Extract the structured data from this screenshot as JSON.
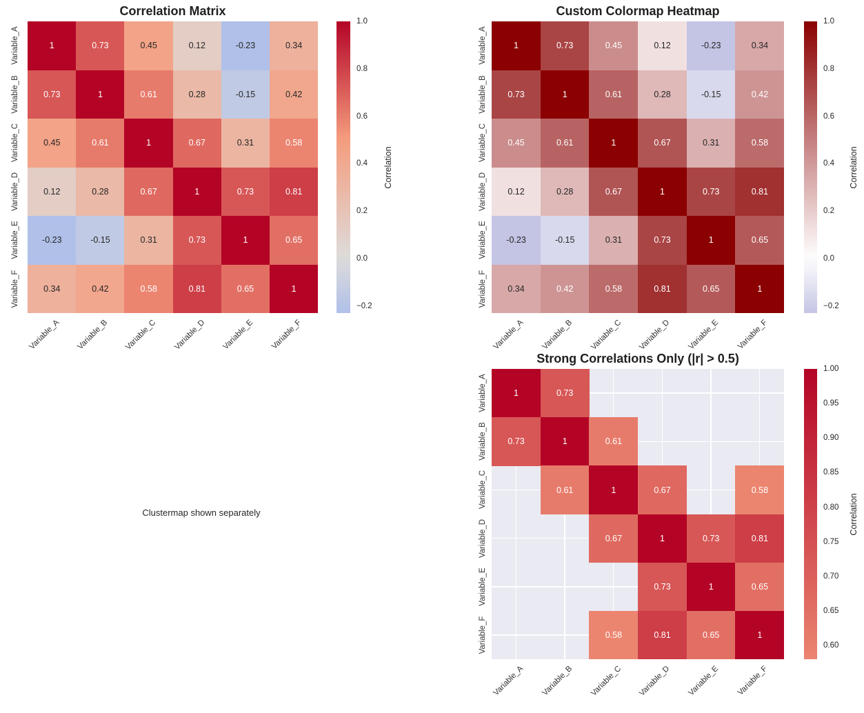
{
  "figure": {
    "background": "#ffffff"
  },
  "variables": [
    "Variable_A",
    "Variable_B",
    "Variable_C",
    "Variable_D",
    "Variable_E",
    "Variable_F"
  ],
  "colormaps": {
    "coolwarm": {
      "positions": [
        0,
        0.25,
        0.5,
        0.75,
        1
      ],
      "colors": [
        "#3b4cc0",
        "#7c9ff9",
        "#dddcdb",
        "#f59d7e",
        "#b40426"
      ]
    },
    "custom": {
      "positions": [
        0,
        0.5,
        1
      ],
      "colors": [
        "#00008b",
        "#ffffff",
        "#8b0000"
      ]
    }
  },
  "colors": {
    "masked_background": "#eaeaf2",
    "grid_line": "#ffffff",
    "annotation_dark": "#262626",
    "annotation_light": "#ffffff",
    "tick_text": "#333333",
    "title_text": "#1f1f1f"
  },
  "chart_data": [
    {
      "type": "heatmap",
      "title": "Correlation Matrix",
      "x_categories": [
        "Variable_A",
        "Variable_B",
        "Variable_C",
        "Variable_D",
        "Variable_E",
        "Variable_F"
      ],
      "y_categories": [
        "Variable_A",
        "Variable_B",
        "Variable_C",
        "Variable_D",
        "Variable_E",
        "Variable_F"
      ],
      "matrix": [
        [
          1,
          0.73,
          0.45,
          0.12,
          -0.23,
          0.34
        ],
        [
          0.73,
          1,
          0.61,
          0.28,
          -0.15,
          0.42
        ],
        [
          0.45,
          0.61,
          1,
          0.67,
          0.31,
          0.58
        ],
        [
          0.12,
          0.28,
          0.67,
          1,
          0.73,
          0.81
        ],
        [
          -0.23,
          -0.15,
          0.31,
          0.73,
          1,
          0.65
        ],
        [
          0.34,
          0.42,
          0.58,
          0.81,
          0.65,
          1
        ]
      ],
      "colormap": "coolwarm",
      "value_norm": {
        "vmin": -1,
        "vmax": 1
      },
      "colorbar": {
        "label": "Correlation",
        "vmin": -0.23,
        "vmax": 1.0,
        "ticks": [
          {
            "v": 1.0,
            "label": "1.0"
          },
          {
            "v": 0.8,
            "label": "0.8"
          },
          {
            "v": 0.6,
            "label": "0.6"
          },
          {
            "v": 0.4,
            "label": "0.4"
          },
          {
            "v": 0.2,
            "label": "0.2"
          },
          {
            "v": 0.0,
            "label": "0.0"
          },
          {
            "v": -0.2,
            "label": "−0.2"
          }
        ]
      }
    },
    {
      "type": "heatmap",
      "title": "Custom Colormap Heatmap",
      "x_categories": [
        "Variable_A",
        "Variable_B",
        "Variable_C",
        "Variable_D",
        "Variable_E",
        "Variable_F"
      ],
      "y_categories": [
        "Variable_A",
        "Variable_B",
        "Variable_C",
        "Variable_D",
        "Variable_E",
        "Variable_F"
      ],
      "matrix": [
        [
          1,
          0.73,
          0.45,
          0.12,
          -0.23,
          0.34
        ],
        [
          0.73,
          1,
          0.61,
          0.28,
          -0.15,
          0.42
        ],
        [
          0.45,
          0.61,
          1,
          0.67,
          0.31,
          0.58
        ],
        [
          0.12,
          0.28,
          0.67,
          1,
          0.73,
          0.81
        ],
        [
          -0.23,
          -0.15,
          0.31,
          0.73,
          1,
          0.65
        ],
        [
          0.34,
          0.42,
          0.58,
          0.81,
          0.65,
          1
        ]
      ],
      "colormap": "custom",
      "value_norm": {
        "vmin": -1,
        "vmax": 1
      },
      "colorbar": {
        "label": "Correlation",
        "vmin": -0.23,
        "vmax": 1.0,
        "ticks": [
          {
            "v": 1.0,
            "label": "1.0"
          },
          {
            "v": 0.8,
            "label": "0.8"
          },
          {
            "v": 0.6,
            "label": "0.6"
          },
          {
            "v": 0.4,
            "label": "0.4"
          },
          {
            "v": 0.2,
            "label": "0.2"
          },
          {
            "v": 0.0,
            "label": "0.0"
          },
          {
            "v": -0.2,
            "label": "−0.2"
          }
        ]
      }
    },
    {
      "type": "heatmap",
      "title": "Strong Correlations Only (|r| > 0.5)",
      "mask_threshold": 0.5,
      "x_categories": [
        "Variable_A",
        "Variable_B",
        "Variable_C",
        "Variable_D",
        "Variable_E",
        "Variable_F"
      ],
      "y_categories": [
        "Variable_A",
        "Variable_B",
        "Variable_C",
        "Variable_D",
        "Variable_E",
        "Variable_F"
      ],
      "matrix": [
        [
          1,
          0.73,
          null,
          null,
          null,
          null
        ],
        [
          0.73,
          1,
          0.61,
          null,
          null,
          null
        ],
        [
          null,
          0.61,
          1,
          0.67,
          null,
          0.58
        ],
        [
          null,
          null,
          0.67,
          1,
          0.73,
          0.81
        ],
        [
          null,
          null,
          null,
          0.73,
          1,
          0.65
        ],
        [
          null,
          null,
          0.58,
          0.81,
          0.65,
          1
        ]
      ],
      "colormap": "coolwarm",
      "value_norm": {
        "vmin": -1,
        "vmax": 1
      },
      "colorbar": {
        "label": "Correlation",
        "vmin": 0.58,
        "vmax": 1.0,
        "ticks": [
          {
            "v": 1.0,
            "label": "1.00"
          },
          {
            "v": 0.95,
            "label": "0.95"
          },
          {
            "v": 0.9,
            "label": "0.90"
          },
          {
            "v": 0.85,
            "label": "0.85"
          },
          {
            "v": 0.8,
            "label": "0.80"
          },
          {
            "v": 0.75,
            "label": "0.75"
          },
          {
            "v": 0.7,
            "label": "0.70"
          },
          {
            "v": 0.65,
            "label": "0.65"
          },
          {
            "v": 0.6,
            "label": "0.60"
          }
        ]
      }
    },
    {
      "type": "text",
      "text": "Clustermap shown separately"
    }
  ]
}
